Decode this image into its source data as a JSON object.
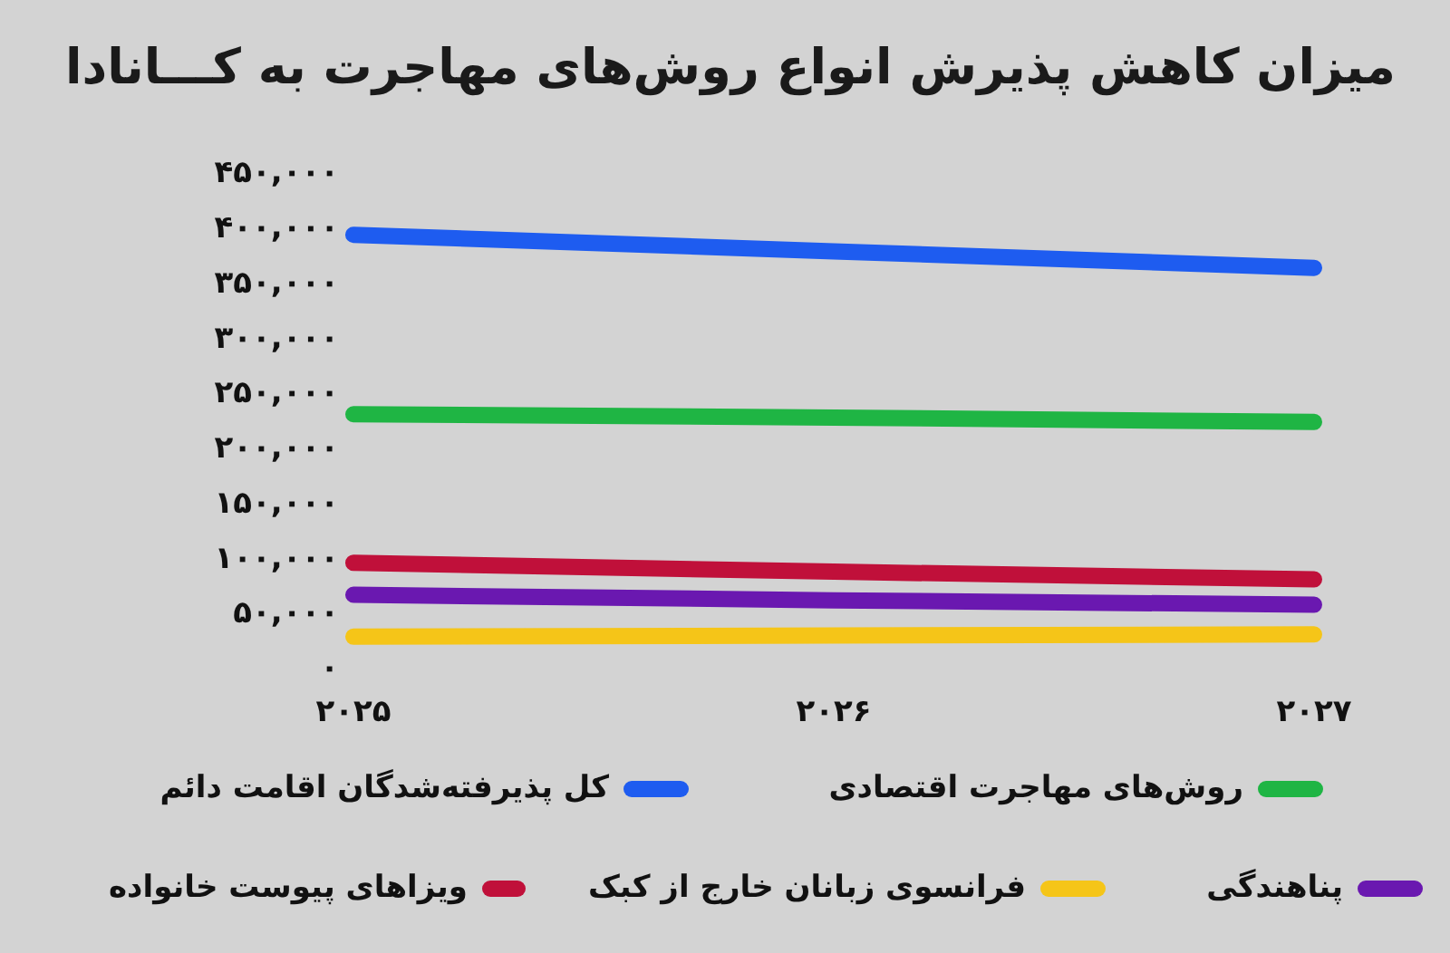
{
  "chart_data": {
    "type": "line",
    "title": "میزان کاهش پذیرش انواع روش‌های مهاجرت به کـــانادا",
    "categories": [
      "۲۰۲۵",
      "۲۰۲۶",
      "۲۰۲۷"
    ],
    "series": [
      {
        "name": "کل پذیرفته‌شدگان اقامت دائم",
        "color": "#1e5cf0",
        "values": [
          395000,
          380000,
          365000
        ]
      },
      {
        "name": "روش‌های مهاجرت اقتصادی",
        "color": "#1fb544",
        "values": [
          232000,
          229000,
          225000
        ]
      },
      {
        "name": "ویزاهای پیوست خانواده",
        "color": "#c0103a",
        "values": [
          97000,
          89000,
          82000
        ]
      },
      {
        "name": "فرانسوی زبانان خارج از کبک",
        "color": "#f5c518",
        "values": [
          30000,
          31000,
          32000
        ]
      },
      {
        "name": "پناهندگی",
        "color": "#6a18b0",
        "values": [
          68000,
          63000,
          59000
        ]
      }
    ],
    "ylim": [
      0,
      450000
    ],
    "yticks": [
      {
        "value": 0,
        "label": "۰"
      },
      {
        "value": 50000,
        "label": "۵۰,۰۰۰"
      },
      {
        "value": 100000,
        "label": "۱۰۰,۰۰۰"
      },
      {
        "value": 150000,
        "label": "۱۵۰,۰۰۰"
      },
      {
        "value": 200000,
        "label": "۲۰۰,۰۰۰"
      },
      {
        "value": 250000,
        "label": "۲۵۰,۰۰۰"
      },
      {
        "value": 300000,
        "label": "۳۰۰,۰۰۰"
      },
      {
        "value": 350000,
        "label": "۳۵۰,۰۰۰"
      },
      {
        "value": 400000,
        "label": "۴۰۰,۰۰۰"
      },
      {
        "value": 450000,
        "label": "۴۵۰,۰۰۰"
      }
    ],
    "grid": false,
    "legend": "bottom",
    "marker": "none",
    "line_style": "solid"
  }
}
